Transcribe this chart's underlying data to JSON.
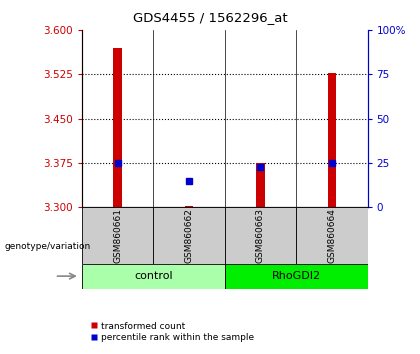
{
  "title": "GDS4455 / 1562296_at",
  "samples": [
    "GSM860661",
    "GSM860662",
    "GSM860663",
    "GSM860664"
  ],
  "groups": [
    {
      "label": "control",
      "indices": [
        0,
        1
      ],
      "color": "#AAFFAA"
    },
    {
      "label": "RhoGDI2",
      "indices": [
        2,
        3
      ],
      "color": "#00EE00"
    }
  ],
  "red_bar_values": [
    3.57,
    3.302,
    3.375,
    3.527
  ],
  "blue_square_values": [
    3.375,
    3.345,
    3.368,
    3.375
  ],
  "baseline": 3.3,
  "ylim_left": [
    3.3,
    3.6
  ],
  "ylim_right": [
    0,
    100
  ],
  "yticks_left": [
    3.3,
    3.375,
    3.45,
    3.525,
    3.6
  ],
  "yticks_right": [
    0,
    25,
    50,
    75,
    100
  ],
  "ytick_labels_right": [
    "0",
    "25",
    "50",
    "75",
    "100%"
  ],
  "hlines": [
    3.375,
    3.45,
    3.525
  ],
  "left_color": "#CC0000",
  "right_color": "#0000CC",
  "bar_color": "#CC0000",
  "square_color": "#0000CC",
  "legend_entries": [
    "transformed count",
    "percentile rank within the sample"
  ],
  "genotype_label": "genotype/variation",
  "sample_box_color": "#CCCCCC",
  "figure_bg": "#FFFFFF",
  "bar_width": 0.12
}
